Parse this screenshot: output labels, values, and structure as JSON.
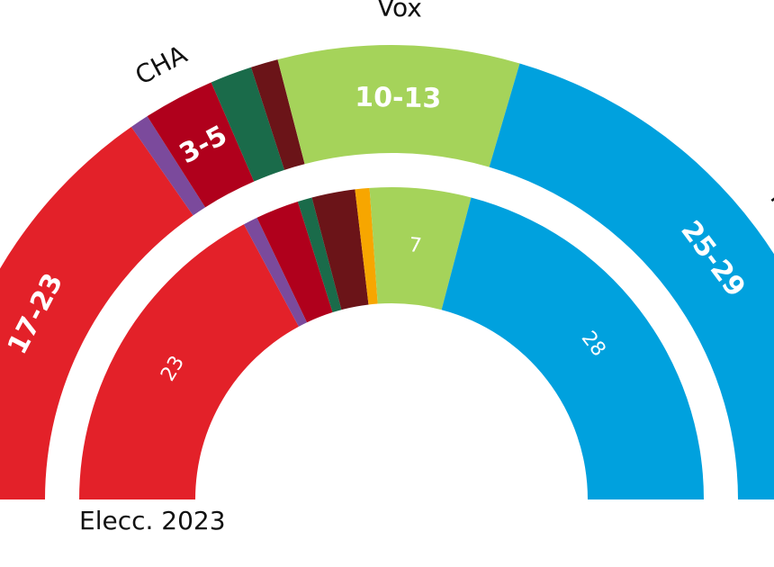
{
  "chart_data": {
    "type": "hemicycle",
    "categories": [
      null,
      null,
      "CHA",
      null,
      null,
      null,
      "Vox",
      "PP"
    ],
    "colors": [
      "#e32129",
      "#7b4a9c",
      "#b0001c",
      "#1a6b4a",
      "#6b1418",
      "#f7a600",
      "#a5d35a",
      "#00a1de"
    ],
    "series": [
      {
        "name": "Elecc. 2023",
        "values": [
          23,
          1,
          3,
          1,
          3,
          1,
          7,
          28
        ]
      },
      {
        "values": [
          20.5,
          0.9,
          3.4,
          2,
          1.3,
          0,
          11.5,
          27.4
        ],
        "value_labels": [
          "17-23",
          null,
          "3-5",
          null,
          null,
          null,
          "10-13",
          "25-29"
        ]
      }
    ]
  }
}
